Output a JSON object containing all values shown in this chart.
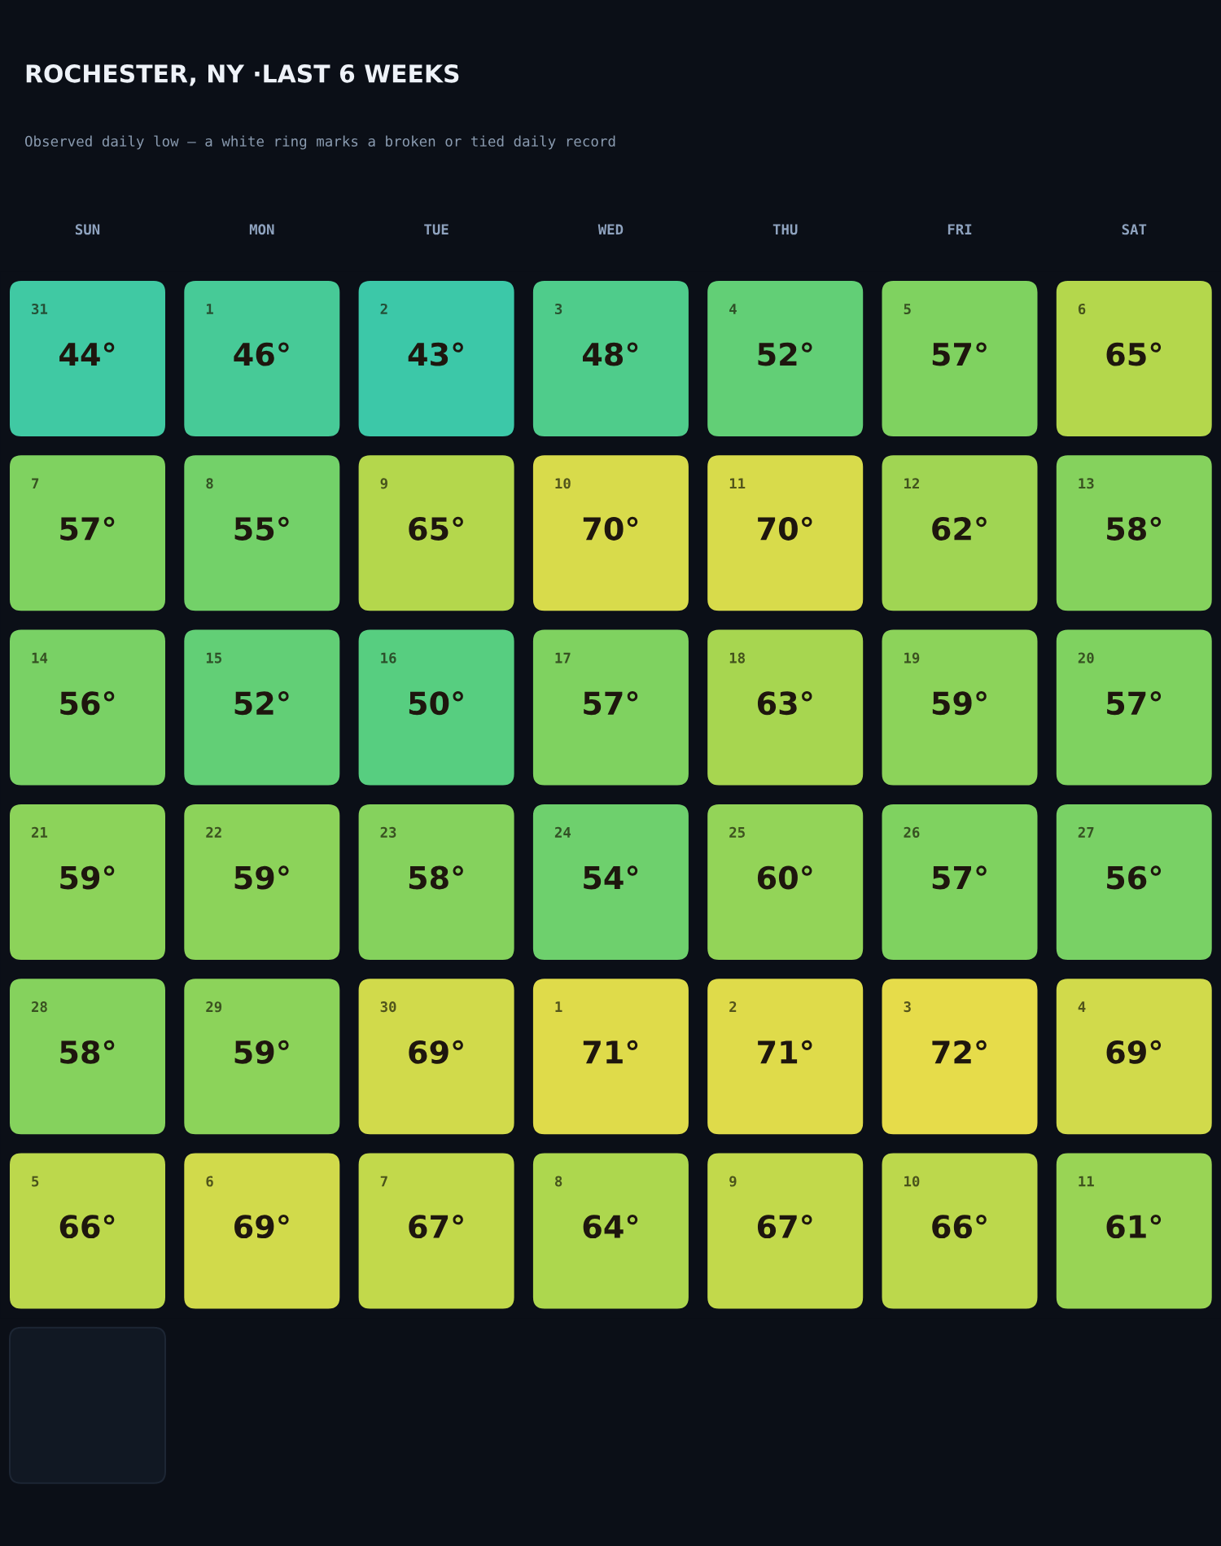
{
  "chart_data": {
    "type": "heatmap",
    "title": "ROCHESTER, NY ·LAST 6 WEEKS",
    "subtitle": "Observed daily low — a white ring marks a broken or tied daily record",
    "categories": [
      "SUN",
      "MON",
      "TUE",
      "WED",
      "THU",
      "FRI",
      "SAT"
    ],
    "y_categories": [
      null,
      null,
      null,
      null,
      null,
      null
    ],
    "cells": [
      [
        44,
        46,
        43,
        48,
        52,
        57,
        65
      ],
      [
        57,
        55,
        65,
        70,
        70,
        62,
        58
      ],
      [
        56,
        52,
        50,
        57,
        63,
        59,
        57
      ],
      [
        59,
        59,
        58,
        54,
        60,
        57,
        56
      ],
      [
        58,
        59,
        69,
        71,
        71,
        72,
        69
      ],
      [
        66,
        69,
        67,
        64,
        67,
        66,
        61
      ]
    ],
    "cell_labels": [
      [
        "44°",
        "46°",
        "43°",
        "48°",
        "52°",
        "57°",
        "65°"
      ],
      [
        "57°",
        "55°",
        "65°",
        "70°",
        "70°",
        "62°",
        "58°"
      ],
      [
        "56°",
        "52°",
        "50°",
        "57°",
        "63°",
        "59°",
        "57°"
      ],
      [
        "59°",
        "59°",
        "58°",
        "54°",
        "60°",
        "57°",
        "56°"
      ],
      [
        "58°",
        "59°",
        "69°",
        "71°",
        "71°",
        "72°",
        "69°"
      ],
      [
        "66°",
        "69°",
        "67°",
        "64°",
        "67°",
        "66°",
        "61°"
      ]
    ],
    "annotations": [
      "31",
      "1",
      "2",
      "3",
      "4",
      "5",
      "6",
      "7",
      "8",
      "9",
      "10",
      "11",
      "12",
      "13",
      "14",
      "15",
      "16",
      "17",
      "18",
      "19",
      "20",
      "21",
      "22",
      "23",
      "24",
      "25",
      "26",
      "27",
      "28",
      "29",
      "30",
      "1",
      "2",
      "3",
      "4",
      "5",
      "6",
      "7",
      "8",
      "9",
      "10",
      "11"
    ],
    "colors": [
      "#3cc8a8",
      "#58ce7e",
      "#82d25e",
      "#b2d74c",
      "#e6dc4a"
    ]
  }
}
